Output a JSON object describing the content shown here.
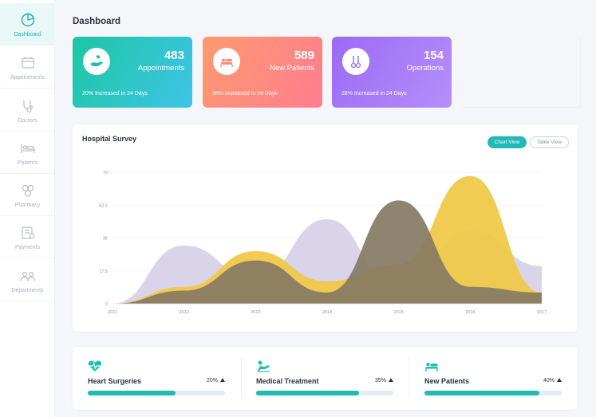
{
  "sidebar": {
    "items": [
      {
        "label": "Dashboard",
        "icon": "dashboard-icon",
        "active": true
      },
      {
        "label": "Appointments",
        "icon": "appointments-icon"
      },
      {
        "label": "Doctors",
        "icon": "stethoscope-icon"
      },
      {
        "label": "Patients",
        "icon": "bed-icon"
      },
      {
        "label": "Pharmacy",
        "icon": "pills-icon"
      },
      {
        "label": "Payments",
        "icon": "payment-icon"
      },
      {
        "label": "Departments",
        "icon": "departments-icon"
      }
    ]
  },
  "header": {
    "title": "Dashboard"
  },
  "stats": [
    {
      "value": "483",
      "label": "Appointments",
      "sub": "20% Increased in 24 Days",
      "icon": "hand-heart-icon"
    },
    {
      "value": "589",
      "label": "New Patients",
      "sub": "38% Increased in 24 Days",
      "icon": "patient-bed-icon"
    },
    {
      "value": "154",
      "label": "Operations",
      "sub": "28% Increased in 24 Days",
      "icon": "surgical-tools-icon"
    }
  ],
  "survey": {
    "title": "Hospital Survey",
    "chart_view_label": "Chart View",
    "table_view_label": "Table View"
  },
  "chart_data": {
    "type": "area",
    "x": [
      "2011",
      "2012",
      "2013",
      "2014",
      "2015",
      "2016",
      "2017"
    ],
    "yticks": [
      "0",
      "17.5",
      "35",
      "52.5",
      "70"
    ],
    "ylim": [
      0,
      70
    ],
    "grid": true,
    "series": [
      {
        "color": "#d8d2ea",
        "values": [
          0,
          31,
          13,
          45,
          6,
          39,
          20
        ]
      },
      {
        "color": "#f0c94a",
        "values": [
          0,
          9,
          28,
          12,
          21,
          68,
          6
        ]
      },
      {
        "color": "#857a63",
        "values": [
          0,
          7,
          23,
          6,
          55,
          9,
          6
        ]
      }
    ]
  },
  "metrics": [
    {
      "label": "Heart Surgeries",
      "percent": "20%",
      "progress": 0.64,
      "icon": "heart-pulse-icon"
    },
    {
      "label": "Medical Treatment",
      "percent": "35%",
      "progress": 0.75,
      "icon": "treatment-icon"
    },
    {
      "label": "New Patients",
      "percent": "40%",
      "progress": 0.84,
      "icon": "new-patient-icon"
    }
  ],
  "colors": {
    "accent": "#1fbcb2",
    "text": "#2c3440",
    "muted": "#a9b0ba"
  }
}
